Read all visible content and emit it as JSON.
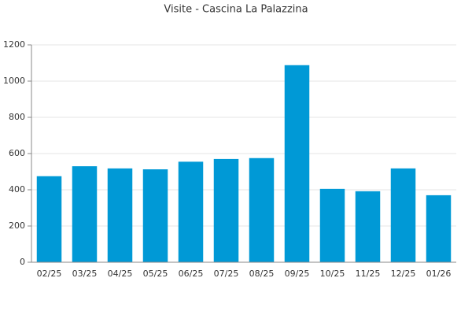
{
  "chart_data": {
    "type": "bar",
    "title": "Visite - Cascina La Palazzina",
    "categories": [
      "02/25",
      "03/25",
      "04/25",
      "05/25",
      "06/25",
      "07/25",
      "08/25",
      "09/25",
      "10/25",
      "11/25",
      "12/25",
      "01/26"
    ],
    "values": [
      475,
      530,
      518,
      513,
      555,
      570,
      575,
      1088,
      405,
      392,
      518,
      370
    ],
    "color": "#0099d6",
    "ylim": [
      0,
      1200
    ],
    "yticks": [
      0,
      200,
      400,
      600,
      800,
      1000,
      1200
    ],
    "grid": true
  }
}
